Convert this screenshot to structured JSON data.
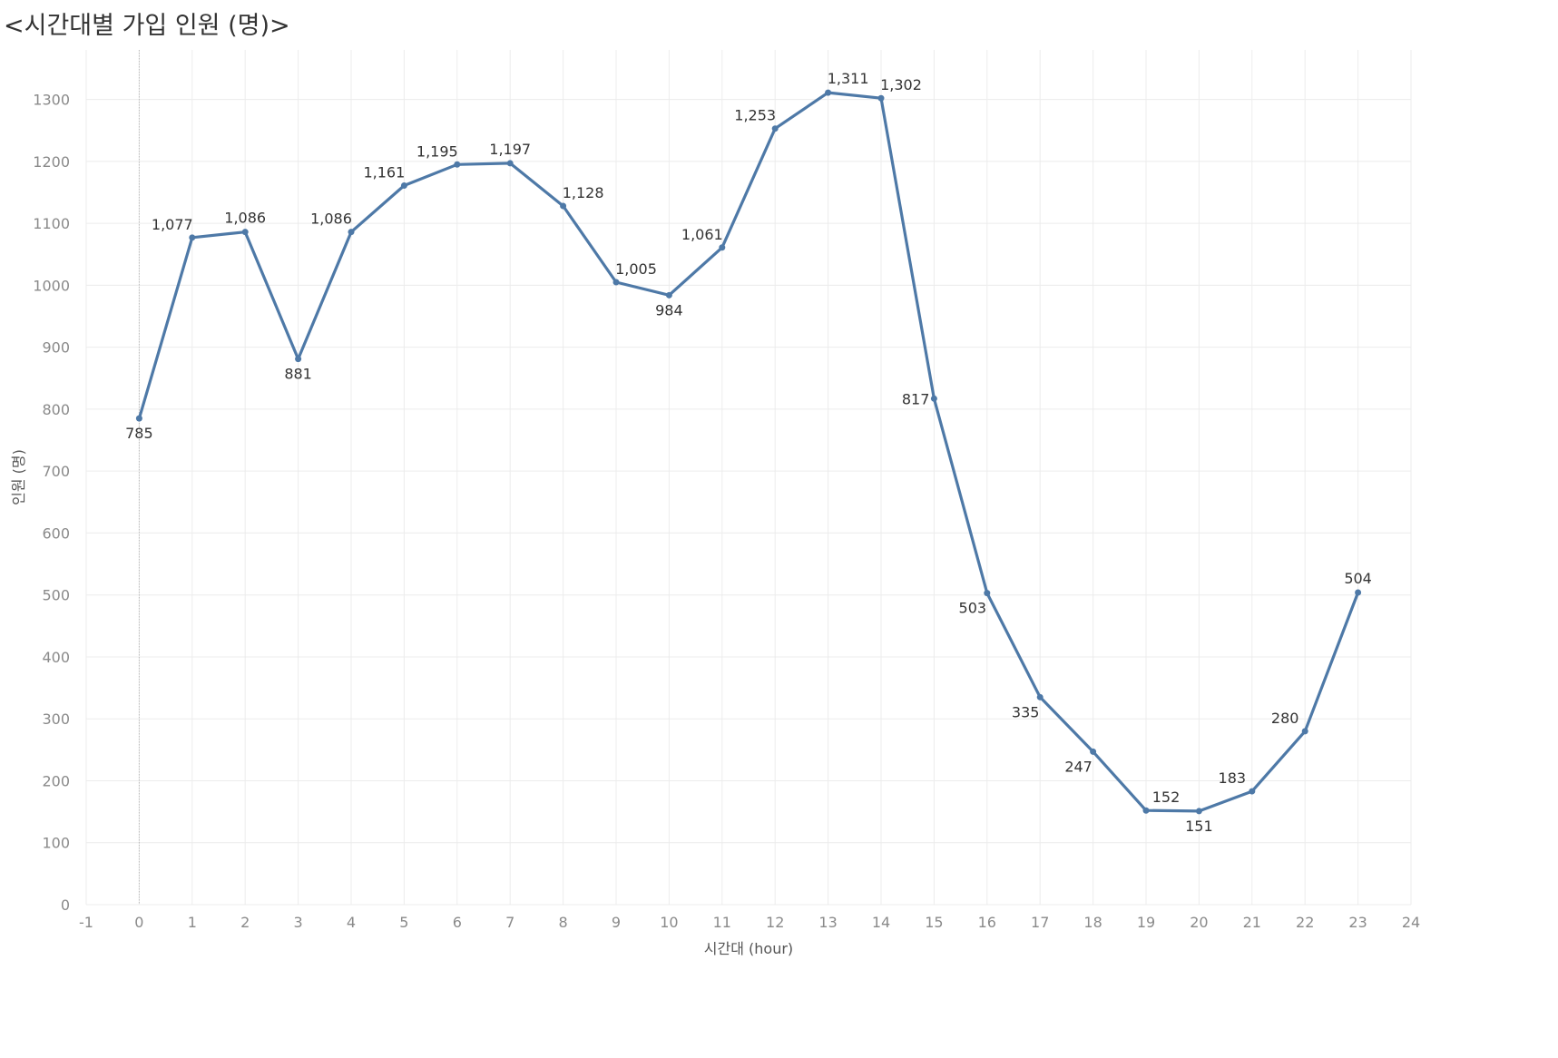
{
  "chart_title": "<시간대별 가입 인원 (명)>",
  "chart_data": {
    "type": "line",
    "title": "<시간대별 가입 인원 (명)>",
    "xlabel": "시간대 (hour)",
    "ylabel": "인원 (명)",
    "x": [
      0,
      1,
      2,
      3,
      4,
      5,
      6,
      7,
      8,
      9,
      10,
      11,
      12,
      13,
      14,
      15,
      16,
      17,
      18,
      19,
      20,
      21,
      22,
      23
    ],
    "values": [
      785,
      1077,
      1086,
      881,
      1086,
      1161,
      1195,
      1197,
      1128,
      1005,
      984,
      1061,
      1253,
      1311,
      1302,
      817,
      503,
      335,
      247,
      152,
      151,
      183,
      280,
      504
    ],
    "data_labels": [
      "785",
      "1,077",
      "1,086",
      "881",
      "1,086",
      "1,161",
      "1,195",
      "1,197",
      "1,128",
      "1,005",
      "984",
      "1,061",
      "1,253",
      "1,311",
      "1,302",
      "817",
      "503",
      "335",
      "247",
      "152",
      "151",
      "183",
      "280",
      "504"
    ],
    "xlim": [
      -1,
      24
    ],
    "ylim": [
      0,
      1380
    ],
    "xticks": [
      -1,
      0,
      1,
      2,
      3,
      4,
      5,
      6,
      7,
      8,
      9,
      10,
      11,
      12,
      13,
      14,
      15,
      16,
      17,
      18,
      19,
      20,
      21,
      22,
      23,
      24
    ],
    "yticks": [
      0,
      100,
      200,
      300,
      400,
      500,
      600,
      700,
      800,
      900,
      1000,
      1100,
      1200,
      1300
    ],
    "grid": true,
    "line_color": "#4e79a7",
    "grid_color": "#ececec",
    "zero_line_color": "#bdbdbd"
  }
}
